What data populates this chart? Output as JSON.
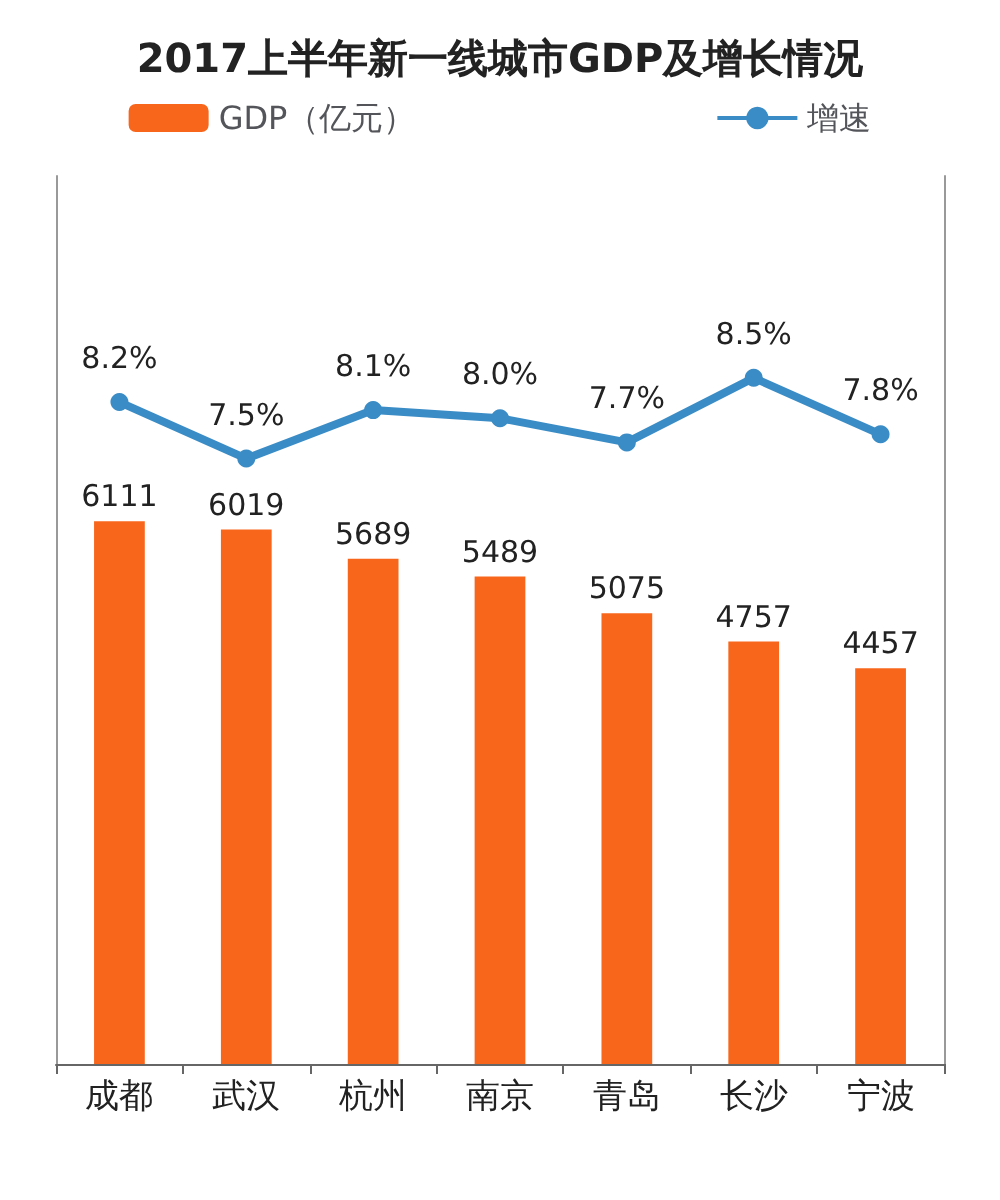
{
  "chart_data": {
    "type": "bar",
    "title": "2017上半年新一线城市GDP及增长情况",
    "categories": [
      "成都",
      "武汉",
      "杭州",
      "南京",
      "青岛",
      "长沙",
      "宁波"
    ],
    "ylim": [
      0,
      10000
    ],
    "y2lim": [
      0,
      11
    ],
    "series": [
      {
        "name": "GDP（亿元）",
        "color": "#f8661c",
        "values": [
          6111,
          6019,
          5689,
          5489,
          5075,
          4757,
          4457
        ]
      },
      {
        "name": "增速",
        "type": "line",
        "axis": "y2",
        "color": "#3a8cc6",
        "values": [
          8.2,
          7.5,
          8.1,
          8.0,
          7.7,
          8.5,
          7.8
        ],
        "value_labels": [
          "8.2%",
          "7.5%",
          "8.1%",
          "8.0%",
          "7.7%",
          "8.5%",
          "7.8%"
        ]
      }
    ],
    "data_labels": true,
    "legend": "top",
    "marker": "circle"
  }
}
